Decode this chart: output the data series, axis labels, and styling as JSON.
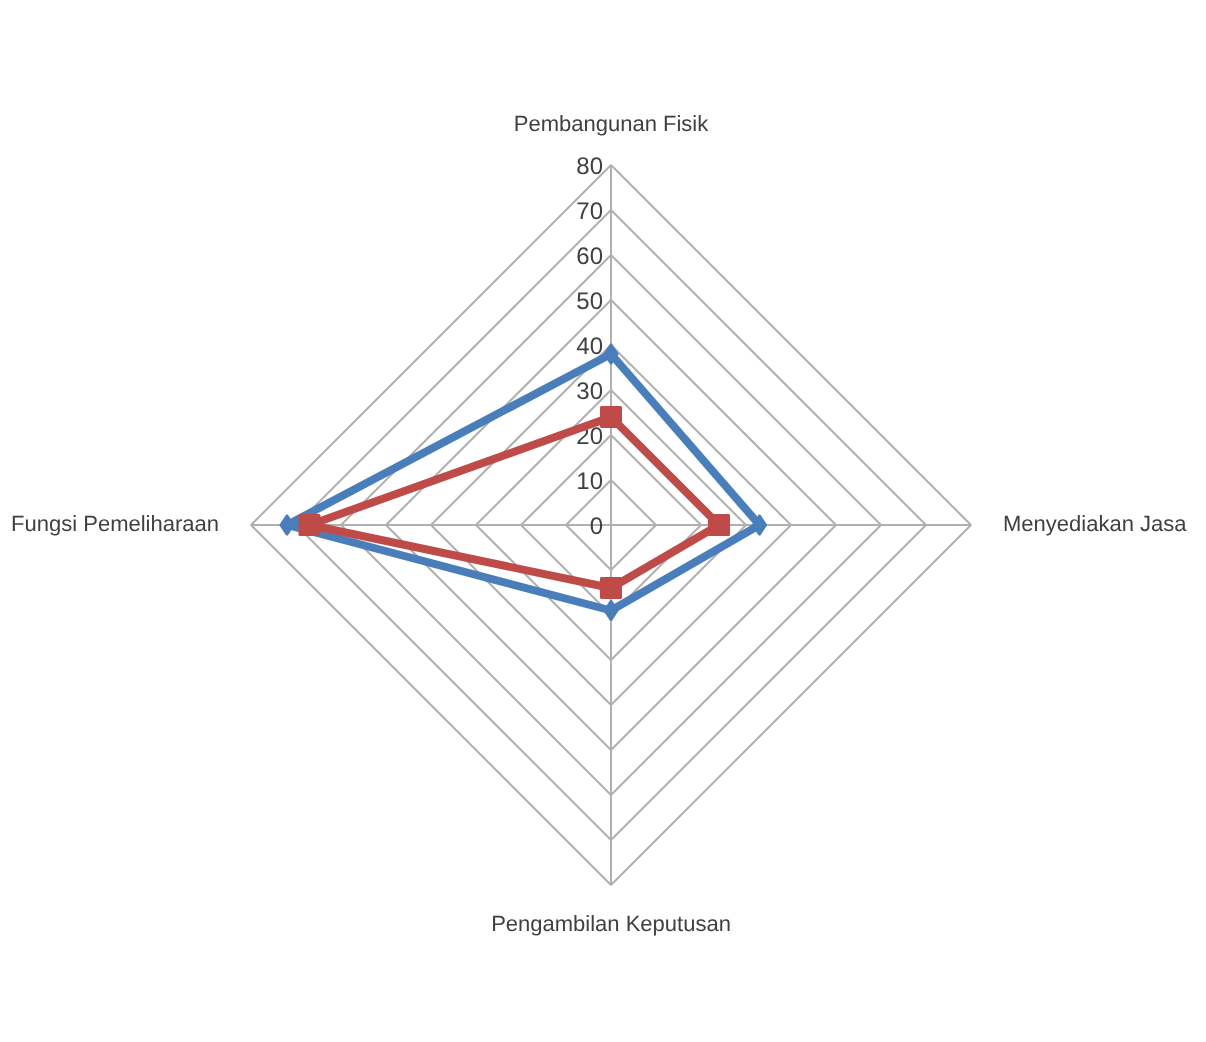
{
  "chart_data": {
    "type": "radar",
    "categories": [
      "Pembangunan Fisik",
      "Menyediakan Jasa",
      "Pengambilan Keputusan",
      "Fungsi Pemeliharaan"
    ],
    "ylim": [
      0,
      80
    ],
    "yticks": [
      0,
      10,
      20,
      30,
      40,
      50,
      60,
      70,
      80
    ],
    "grid": true,
    "series": [
      {
        "color": "#4a7ebb",
        "marker": "diamond",
        "values": [
          38,
          33,
          19,
          72
        ]
      },
      {
        "color": "#be4b48",
        "marker": "square",
        "values": [
          24,
          24,
          14,
          67
        ]
      }
    ]
  }
}
